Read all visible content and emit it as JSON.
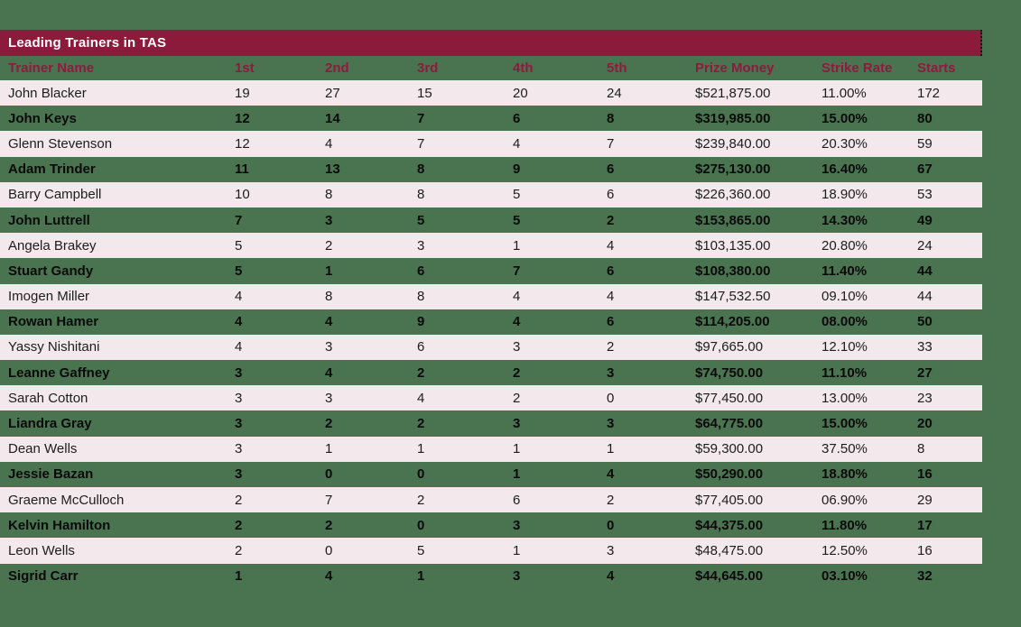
{
  "theme": {
    "page_background": "#4A7350",
    "title_bar_background": "#8B1A3B",
    "title_bar_text": "#FFFFFF",
    "column_header_text": "#8E1B3E",
    "row_alternate_background": "#F3E8EC",
    "row_light_text": "#1D1D1D",
    "row_dark_text": "#0A0A0A"
  },
  "title_bar": {
    "label": "Leading Trainers in TAS"
  },
  "table": {
    "columns": [
      "Trainer Name",
      "1st",
      "2nd",
      "3rd",
      "4th",
      "5th",
      "Prize Money",
      "Strike Rate",
      "Starts"
    ],
    "rows": [
      [
        "John Blacker",
        "19",
        "27",
        "15",
        "20",
        "24",
        "$521,875.00",
        "11.00%",
        "172"
      ],
      [
        "John Keys",
        "12",
        "14",
        "7",
        "6",
        "8",
        "$319,985.00",
        "15.00%",
        "80"
      ],
      [
        "Glenn Stevenson",
        "12",
        "4",
        "7",
        "4",
        "7",
        "$239,840.00",
        "20.30%",
        "59"
      ],
      [
        "Adam Trinder",
        "11",
        "13",
        "8",
        "9",
        "6",
        "$275,130.00",
        "16.40%",
        "67"
      ],
      [
        "Barry Campbell",
        "10",
        "8",
        "8",
        "5",
        "6",
        "$226,360.00",
        "18.90%",
        "53"
      ],
      [
        "John Luttrell",
        "7",
        "3",
        "5",
        "5",
        "2",
        "$153,865.00",
        "14.30%",
        "49"
      ],
      [
        "Angela Brakey",
        "5",
        "2",
        "3",
        "1",
        "4",
        "$103,135.00",
        "20.80%",
        "24"
      ],
      [
        "Stuart Gandy",
        "5",
        "1",
        "6",
        "7",
        "6",
        "$108,380.00",
        "11.40%",
        "44"
      ],
      [
        "Imogen Miller",
        "4",
        "8",
        "8",
        "4",
        "4",
        "$147,532.50",
        "09.10%",
        "44"
      ],
      [
        "Rowan Hamer",
        "4",
        "4",
        "9",
        "4",
        "6",
        "$114,205.00",
        "08.00%",
        "50"
      ],
      [
        "Yassy Nishitani",
        "4",
        "3",
        "6",
        "3",
        "2",
        "$97,665.00",
        "12.10%",
        "33"
      ],
      [
        "Leanne Gaffney",
        "3",
        "4",
        "2",
        "2",
        "3",
        "$74,750.00",
        "11.10%",
        "27"
      ],
      [
        "Sarah Cotton",
        "3",
        "3",
        "4",
        "2",
        "0",
        "$77,450.00",
        "13.00%",
        "23"
      ],
      [
        "Liandra Gray",
        "3",
        "2",
        "2",
        "3",
        "3",
        "$64,775.00",
        "15.00%",
        "20"
      ],
      [
        "Dean Wells",
        "3",
        "1",
        "1",
        "1",
        "1",
        "$59,300.00",
        "37.50%",
        "8"
      ],
      [
        "Jessie Bazan",
        "3",
        "0",
        "0",
        "1",
        "4",
        "$50,290.00",
        "18.80%",
        "16"
      ],
      [
        "Graeme McCulloch",
        "2",
        "7",
        "2",
        "6",
        "2",
        "$77,405.00",
        "06.90%",
        "29"
      ],
      [
        "Kelvin Hamilton",
        "2",
        "2",
        "0",
        "3",
        "0",
        "$44,375.00",
        "11.80%",
        "17"
      ],
      [
        "Leon Wells",
        "2",
        "0",
        "5",
        "1",
        "3",
        "$48,475.00",
        "12.50%",
        "16"
      ],
      [
        "Sigrid Carr",
        "1",
        "4",
        "1",
        "3",
        "4",
        "$44,645.00",
        "03.10%",
        "32"
      ]
    ]
  }
}
